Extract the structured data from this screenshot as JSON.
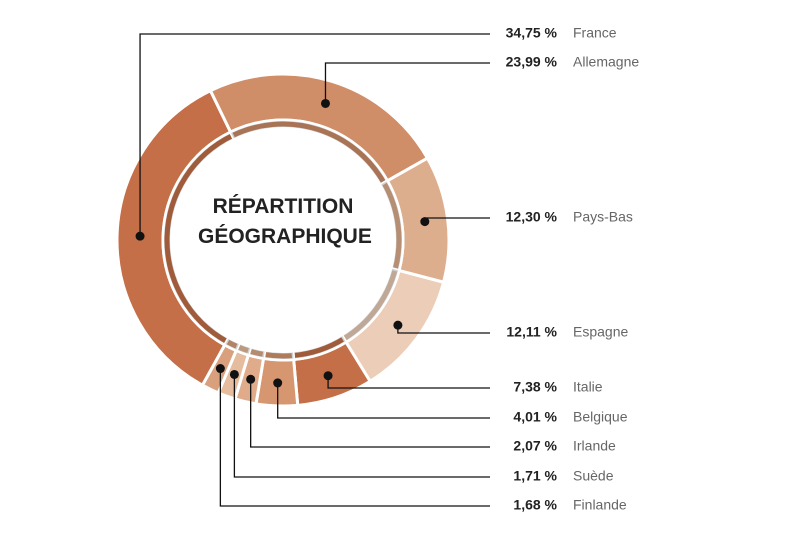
{
  "chart_data": {
    "type": "donut",
    "title": "RÉPARTITION GÉOGRAPHIQUE",
    "categories": [
      "France",
      "Allemagne",
      "Pays-Bas",
      "Espagne",
      "Italie",
      "Belgique",
      "Irlande",
      "Suède",
      "Finlande"
    ],
    "values": [
      34.75,
      23.99,
      12.3,
      12.11,
      7.38,
      4.01,
      2.07,
      1.71,
      1.68
    ],
    "value_labels": [
      "34,75 %",
      "23,99 %",
      "12,30 %",
      "12,11 %",
      "7,38 %",
      "4,01 %",
      "2,07 %",
      "1,71 %",
      "1,68 %"
    ],
    "colors": [
      "#c46f47",
      "#cf8d68",
      "#ddae8e",
      "#ebcdb8",
      "#c46f47",
      "#d69670",
      "#dfab8a",
      "#e6bc9f",
      "#d9a07d"
    ]
  }
}
